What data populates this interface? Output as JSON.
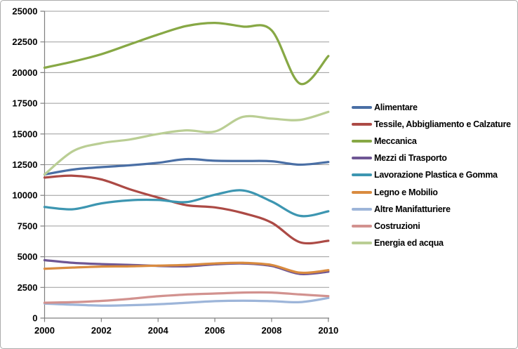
{
  "frame": {
    "background": "#FFFFFF",
    "border_color": "#ABABAB",
    "gridline_color": "#9C9C9C",
    "axis_color": "#7F7F7F"
  },
  "chart_data": {
    "type": "line",
    "smooth": true,
    "title": "",
    "xlabel": "",
    "ylabel": "",
    "grid": "horizontal",
    "legend_position": "right",
    "x": [
      2000,
      2001,
      2002,
      2003,
      2004,
      2005,
      2006,
      2007,
      2008,
      2009,
      2010
    ],
    "x_axis": {
      "tick_years": [
        2000,
        2002,
        2004,
        2006,
        2008,
        2010
      ],
      "tick_labels": [
        "2000",
        "2002",
        "2004",
        "2006",
        "2008",
        "2010"
      ]
    },
    "y_axis": {
      "min": 0,
      "max": 25000,
      "step": 2500,
      "tick_values": [
        0,
        2500,
        5000,
        7500,
        10000,
        12500,
        15000,
        17500,
        20000,
        22500,
        25000
      ],
      "tick_labels": [
        "0",
        "2500",
        "5000",
        "7500",
        "10000",
        "12500",
        "15000",
        "17500",
        "20000",
        "22500",
        "25000"
      ]
    },
    "series": [
      {
        "name": "Alimentare",
        "color": "#4A6FA5",
        "values": [
          11700,
          12100,
          12300,
          12450,
          12650,
          12950,
          12820,
          12800,
          12780,
          12500,
          12720
        ]
      },
      {
        "name": "Tessile, Abbigliamento e Calzature",
        "color": "#AC4A45",
        "values": [
          11450,
          11600,
          11300,
          10500,
          9820,
          9200,
          9020,
          8550,
          7780,
          6180,
          6300
        ]
      },
      {
        "name": "Meccanica",
        "color": "#87A845",
        "values": [
          20400,
          20900,
          21500,
          22300,
          23100,
          23800,
          24050,
          23750,
          23450,
          19100,
          21350
        ]
      },
      {
        "name": "Mezzi di Trasporto",
        "color": "#6E5694",
        "values": [
          4720,
          4500,
          4400,
          4330,
          4250,
          4220,
          4380,
          4450,
          4250,
          3600,
          3780
        ]
      },
      {
        "name": "Lavorazione Plastica e Gomma",
        "color": "#3D96B1",
        "values": [
          9050,
          8870,
          9350,
          9600,
          9620,
          9450,
          10050,
          10400,
          9500,
          8330,
          8700
        ]
      },
      {
        "name": "Legno e Mobilio",
        "color": "#D98B3F",
        "values": [
          4020,
          4120,
          4200,
          4220,
          4280,
          4330,
          4450,
          4500,
          4330,
          3700,
          3900
        ]
      },
      {
        "name": "Altre Manifatturiere",
        "color": "#9DB5D9",
        "values": [
          1190,
          1090,
          1020,
          1050,
          1130,
          1250,
          1380,
          1420,
          1380,
          1300,
          1640
        ]
      },
      {
        "name": "Costruzioni",
        "color": "#D2928F",
        "values": [
          1250,
          1300,
          1400,
          1570,
          1780,
          1920,
          2000,
          2080,
          2080,
          1930,
          1790
        ]
      },
      {
        "name": "Energia ed acqua",
        "color": "#BACE94",
        "values": [
          11700,
          13600,
          14250,
          14550,
          15000,
          15300,
          15200,
          16400,
          16250,
          16150,
          16800
        ]
      }
    ]
  }
}
